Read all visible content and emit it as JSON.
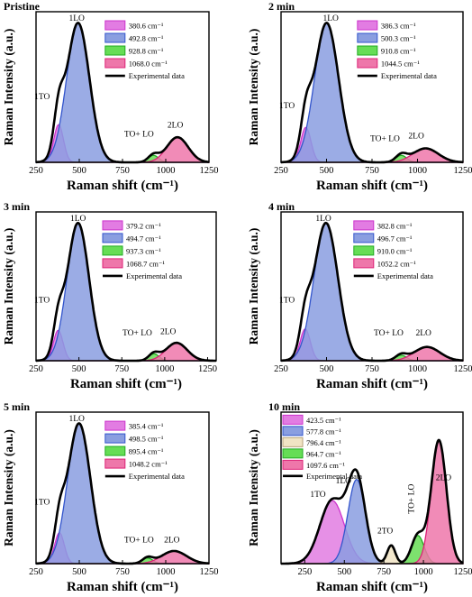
{
  "chart_data": [
    {
      "type": "area",
      "panel_title": "Pristine",
      "xlabel": "Raman shift (cm⁻¹)",
      "ylabel": "Raman Intensity (a.u.)",
      "xlim": [
        250,
        1250
      ],
      "xticks": [
        "250",
        "500",
        "750",
        "1000",
        "1250"
      ],
      "series": [
        {
          "name": "380.6 cm⁻¹",
          "center": 380.6,
          "height": 0.27,
          "width": 28,
          "color": "#cc33cc",
          "fill": "#e27ce2"
        },
        {
          "name": "492.8 cm⁻¹",
          "center": 492.8,
          "height": 1.0,
          "width": 66,
          "color": "#3355cc",
          "fill": "#8a9ee0"
        },
        {
          "name": "928.8 cm⁻¹",
          "center": 928.8,
          "height": 0.05,
          "width": 30,
          "color": "#22aa22",
          "fill": "#66dd55"
        },
        {
          "name": "1068.0 cm⁻¹",
          "center": 1068.0,
          "height": 0.18,
          "width": 62,
          "color": "#dd2277",
          "fill": "#ee77aa"
        }
      ],
      "experimental_label": "Experimental data",
      "peak_labels": [
        "1LO",
        "1TO",
        "TO+ LO",
        "2LO"
      ]
    },
    {
      "type": "area",
      "panel_title": "2 min",
      "xlabel": "Raman shift (cm⁻¹)",
      "ylabel": "Raman Intensity (a.u.)",
      "xlim": [
        250,
        1250
      ],
      "xticks": [
        "250",
        "500",
        "750",
        "1000",
        "1250"
      ],
      "series": [
        {
          "name": "386.3 cm⁻¹",
          "center": 386.3,
          "height": 0.25,
          "width": 28,
          "color": "#cc33cc",
          "fill": "#e27ce2"
        },
        {
          "name": "500.3 cm⁻¹",
          "center": 500.3,
          "height": 1.0,
          "width": 66,
          "color": "#3355cc",
          "fill": "#8a9ee0"
        },
        {
          "name": "910.8 cm⁻¹",
          "center": 910.8,
          "height": 0.05,
          "width": 30,
          "color": "#22aa22",
          "fill": "#66dd55"
        },
        {
          "name": "1044.5 cm⁻¹",
          "center": 1044.5,
          "height": 0.1,
          "width": 70,
          "color": "#dd2277",
          "fill": "#ee77aa"
        }
      ],
      "experimental_label": "Experimental data",
      "peak_labels": [
        "1LO",
        "1TO",
        "TO+ LO",
        "2LO"
      ]
    },
    {
      "type": "area",
      "panel_title": "3 min",
      "xlabel": "Raman shift (cm⁻¹)",
      "ylabel": "Raman Intensity (a.u.)",
      "xlim": [
        250,
        1300
      ],
      "xticks": [
        "250",
        "500",
        "750",
        "1000",
        "1250"
      ],
      "series": [
        {
          "name": "379.2 cm⁻¹",
          "center": 379.2,
          "height": 0.22,
          "width": 28,
          "color": "#cc33cc",
          "fill": "#e27ce2"
        },
        {
          "name": "494.7 cm⁻¹",
          "center": 494.7,
          "height": 1.0,
          "width": 64,
          "color": "#3355cc",
          "fill": "#8a9ee0"
        },
        {
          "name": "937.3 cm⁻¹",
          "center": 937.3,
          "height": 0.05,
          "width": 30,
          "color": "#22aa22",
          "fill": "#66dd55"
        },
        {
          "name": "1068.7 cm⁻¹",
          "center": 1068.7,
          "height": 0.13,
          "width": 62,
          "color": "#dd2277",
          "fill": "#ee77aa"
        }
      ],
      "experimental_label": "Experimental data",
      "peak_labels": [
        "1LO",
        "1TO",
        "TO+ LO",
        "2LO"
      ]
    },
    {
      "type": "area",
      "panel_title": "4 min",
      "xlabel": "Raman shift (cm⁻¹)",
      "ylabel": "Raman Intensity (a.u.)",
      "xlim": [
        250,
        1250
      ],
      "xticks": [
        "250",
        "500",
        "750",
        "1000",
        "1250"
      ],
      "series": [
        {
          "name": "382.8 cm⁻¹",
          "center": 382.8,
          "height": 0.23,
          "width": 28,
          "color": "#cc33cc",
          "fill": "#e27ce2"
        },
        {
          "name": "496.7 cm⁻¹",
          "center": 496.7,
          "height": 1.0,
          "width": 66,
          "color": "#3355cc",
          "fill": "#8a9ee0"
        },
        {
          "name": "910.0 cm⁻¹",
          "center": 910.0,
          "height": 0.04,
          "width": 30,
          "color": "#22aa22",
          "fill": "#66dd55"
        },
        {
          "name": "1052.2 cm⁻¹",
          "center": 1052.2,
          "height": 0.1,
          "width": 70,
          "color": "#dd2277",
          "fill": "#ee77aa"
        }
      ],
      "experimental_label": "Experimental data",
      "peak_labels": [
        "1LO",
        "1TO",
        "TO+ LO",
        "2LO"
      ]
    },
    {
      "type": "area",
      "panel_title": "5 min",
      "xlabel": "Raman shift (cm⁻¹)",
      "ylabel": "Raman Intensity (a.u.)",
      "xlim": [
        250,
        1250
      ],
      "xticks": [
        "250",
        "500",
        "750",
        "1000",
        "1250"
      ],
      "series": [
        {
          "name": "385.4 cm⁻¹",
          "center": 385.4,
          "height": 0.22,
          "width": 28,
          "color": "#cc33cc",
          "fill": "#e27ce2"
        },
        {
          "name": "498.5 cm⁻¹",
          "center": 498.5,
          "height": 1.0,
          "width": 66,
          "color": "#3355cc",
          "fill": "#8a9ee0"
        },
        {
          "name": "895.4 cm⁻¹",
          "center": 895.4,
          "height": 0.04,
          "width": 30,
          "color": "#22aa22",
          "fill": "#66dd55"
        },
        {
          "name": "1048.2 cm⁻¹",
          "center": 1048.2,
          "height": 0.09,
          "width": 72,
          "color": "#dd2277",
          "fill": "#ee77aa"
        }
      ],
      "experimental_label": "Experimental data",
      "peak_labels": [
        "1LO",
        "1TO",
        "TO+ LO",
        "2LO"
      ]
    },
    {
      "type": "area",
      "panel_title": "10 min",
      "xlabel": "Raman shift (cm⁻¹)",
      "ylabel": "Raman Intensity (a.u.)",
      "xlim": [
        100,
        1250
      ],
      "xticks": [
        "250",
        "500",
        "750",
        "1000",
        "1250"
      ],
      "series": [
        {
          "name": "423.5 cm⁻¹",
          "center": 423.5,
          "height": 0.45,
          "width": 78,
          "color": "#cc33cc",
          "fill": "#e27ce2"
        },
        {
          "name": "577.8 cm⁻¹",
          "center": 577.8,
          "height": 0.6,
          "width": 55,
          "color": "#3355cc",
          "fill": "#8a9ee0"
        },
        {
          "name": "796.4 cm⁻¹",
          "center": 796.4,
          "height": 0.13,
          "width": 26,
          "color": "#b9a27a",
          "fill": "#f1e4c4"
        },
        {
          "name": "964.7 cm⁻¹",
          "center": 964.7,
          "height": 0.2,
          "width": 40,
          "color": "#22aa22",
          "fill": "#66dd55"
        },
        {
          "name": "1097.6 cm⁻¹",
          "center": 1097.6,
          "height": 0.88,
          "width": 48,
          "color": "#dd2277",
          "fill": "#ee77aa"
        }
      ],
      "experimental_label": "Experimental data",
      "peak_labels": [
        "1TO",
        "1LO",
        "2TO",
        "TO+ LO",
        "2LO"
      ]
    }
  ]
}
